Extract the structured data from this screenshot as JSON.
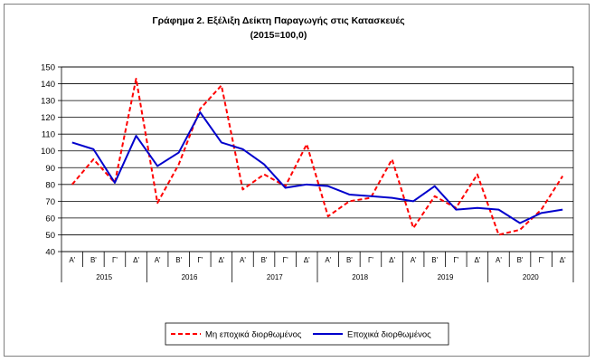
{
  "chart_data": {
    "type": "line",
    "title": "Γράφημα 2. Εξέλιξη  Δείκτη  Παραγωγής  στις Κατασκευές",
    "subtitle": "(2015=100,0)",
    "xlabel": "",
    "ylabel": "",
    "ylim": [
      40,
      150
    ],
    "yticks": [
      40,
      50,
      60,
      70,
      80,
      90,
      100,
      110,
      120,
      130,
      140,
      150
    ],
    "grid": true,
    "legend_position": "bottom",
    "quarter_labels": [
      "Α'",
      "Β'",
      "Γ'",
      "Δ'"
    ],
    "years": [
      "2015",
      "2016",
      "2017",
      "2018",
      "2019",
      "2020"
    ],
    "categories": [
      "Α'",
      "Β'",
      "Γ'",
      "Δ'",
      "Α'",
      "Β'",
      "Γ'",
      "Δ'",
      "Α'",
      "Β'",
      "Γ'",
      "Δ'",
      "Α'",
      "Β'",
      "Γ'",
      "Δ'",
      "Α'",
      "Β'",
      "Γ'",
      "Δ'",
      "Α'",
      "Β'",
      "Γ'",
      "Δ'"
    ],
    "series": [
      {
        "name": "Μη εποχικά διορθωμένος",
        "color": "#ff0000",
        "dash": true,
        "values": [
          80,
          95,
          81,
          143,
          69,
          92,
          125,
          139,
          77,
          86,
          79,
          104,
          61,
          70,
          72,
          95,
          54,
          73,
          66,
          86,
          50,
          53,
          65,
          85
        ]
      },
      {
        "name": "Εποχικά διορθωμένος",
        "color": "#0000cc",
        "dash": false,
        "values": [
          105,
          101,
          81,
          109,
          91,
          99,
          123,
          105,
          101,
          92,
          78,
          80,
          79,
          74,
          73,
          72,
          70,
          79,
          65,
          66,
          65,
          57,
          63,
          65
        ]
      }
    ]
  }
}
